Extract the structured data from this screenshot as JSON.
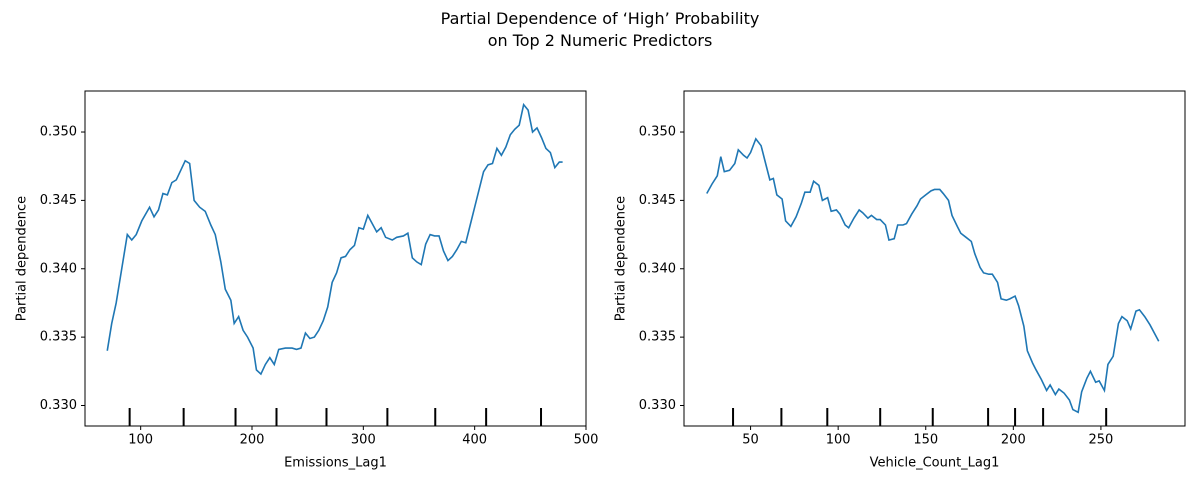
{
  "title": "Partial Dependence of ‘High’ Probability\non Top 2 Numeric Predictors",
  "chart_data": [
    {
      "type": "line",
      "xlabel": "Emissions_Lag1",
      "ylabel": "Partial dependence",
      "color": "#1f77b4",
      "xlim": [
        50,
        500
      ],
      "xticks": [
        100,
        200,
        300,
        400,
        500
      ],
      "ylim": [
        0.3285,
        0.353
      ],
      "yticks": [
        {
          "value": 0.33,
          "label": "0.330"
        },
        {
          "value": 0.335,
          "label": "0.335"
        },
        {
          "value": 0.34,
          "label": "0.340"
        },
        {
          "value": 0.345,
          "label": "0.345"
        },
        {
          "value": 0.35,
          "label": "0.350"
        }
      ],
      "deciles": [
        90.1,
        138.6,
        185.2,
        222,
        266.9,
        321.6,
        364.6,
        410.3,
        459.6
      ],
      "x": [
        70,
        74,
        78,
        83,
        88,
        92,
        96,
        101,
        108,
        112,
        116,
        120,
        124,
        128,
        132,
        136,
        140,
        144,
        148,
        153,
        158,
        163,
        167,
        172,
        176,
        181,
        184,
        188,
        192,
        196,
        201,
        204,
        208,
        212,
        216,
        220,
        224,
        230,
        236,
        240,
        244,
        248,
        252,
        256,
        260,
        264,
        268,
        272,
        276,
        280,
        284,
        288,
        292,
        296,
        300,
        304,
        308,
        312,
        316,
        320,
        326,
        330,
        336,
        340,
        344,
        348,
        352,
        356,
        360,
        364,
        368,
        372,
        376,
        380,
        384,
        388,
        392,
        396,
        400,
        404,
        408,
        412,
        416,
        420,
        424,
        428,
        432,
        436,
        440,
        444,
        448,
        452,
        456,
        460,
        464,
        468,
        472,
        476,
        479
      ],
      "values": [
        0.334,
        0.336,
        0.3375,
        0.34,
        0.3425,
        0.3421,
        0.3425,
        0.3435,
        0.3445,
        0.3438,
        0.3443,
        0.3455,
        0.3454,
        0.3463,
        0.3465,
        0.3472,
        0.3479,
        0.3477,
        0.345,
        0.3445,
        0.3442,
        0.3432,
        0.3425,
        0.3405,
        0.3385,
        0.3377,
        0.336,
        0.3365,
        0.3355,
        0.335,
        0.3342,
        0.3326,
        0.3323,
        0.333,
        0.3335,
        0.333,
        0.3341,
        0.3342,
        0.3342,
        0.3341,
        0.3342,
        0.3353,
        0.3349,
        0.335,
        0.3355,
        0.3362,
        0.3372,
        0.339,
        0.3397,
        0.3408,
        0.3409,
        0.3414,
        0.3417,
        0.343,
        0.3429,
        0.3439,
        0.3433,
        0.3427,
        0.343,
        0.3423,
        0.3421,
        0.3423,
        0.3424,
        0.3426,
        0.3408,
        0.3405,
        0.3403,
        0.3418,
        0.3425,
        0.3424,
        0.3424,
        0.3413,
        0.3406,
        0.3409,
        0.3414,
        0.342,
        0.3419,
        0.3432,
        0.3445,
        0.3458,
        0.3471,
        0.3476,
        0.3477,
        0.3488,
        0.3483,
        0.3489,
        0.3498,
        0.3502,
        0.3505,
        0.352,
        0.3516,
        0.35,
        0.3503,
        0.3496,
        0.3488,
        0.3485,
        0.3474,
        0.3478,
        0.3478
      ]
    },
    {
      "type": "line",
      "xlabel": "Vehicle_Count_Lag1",
      "ylabel": "Partial dependence",
      "color": "#1f77b4",
      "xlim": [
        12,
        298
      ],
      "xticks": [
        50,
        100,
        150,
        200,
        250
      ],
      "ylim": [
        0.3285,
        0.353
      ],
      "yticks": [
        {
          "value": 0.33,
          "label": "0.330"
        },
        {
          "value": 0.335,
          "label": "0.335"
        },
        {
          "value": 0.34,
          "label": "0.340"
        },
        {
          "value": 0.345,
          "label": "0.345"
        },
        {
          "value": 0.35,
          "label": "0.350"
        }
      ],
      "deciles": [
        40,
        67.6,
        93.8,
        124,
        154,
        185.6,
        201,
        217,
        253
      ],
      "x": [
        25,
        28,
        31,
        33,
        35,
        38,
        41,
        43,
        46,
        48,
        50,
        53,
        56,
        58,
        61,
        63,
        65,
        68,
        70,
        73,
        76,
        79,
        81,
        84,
        86,
        89,
        91,
        94,
        96,
        99,
        101,
        104,
        106,
        109,
        112,
        114,
        117,
        119,
        122,
        124,
        127,
        129,
        132,
        134,
        137,
        139,
        142,
        145,
        147,
        150,
        153,
        155,
        158,
        160,
        163,
        165,
        168,
        170,
        173,
        176,
        178,
        181,
        183,
        186,
        188,
        191,
        193,
        196,
        198,
        201,
        203,
        206,
        208,
        211,
        213,
        216,
        219,
        221,
        224,
        226,
        229,
        232,
        234,
        237,
        239,
        242,
        244,
        247,
        249,
        252,
        254,
        257,
        260,
        262,
        265,
        267,
        270,
        272,
        275,
        278,
        283
      ],
      "values": [
        0.3455,
        0.3462,
        0.3468,
        0.3482,
        0.3471,
        0.3472,
        0.3477,
        0.3487,
        0.3483,
        0.3481,
        0.3485,
        0.3495,
        0.349,
        0.348,
        0.3465,
        0.3466,
        0.3454,
        0.3451,
        0.3435,
        0.3431,
        0.3438,
        0.3448,
        0.3456,
        0.3456,
        0.3464,
        0.3461,
        0.345,
        0.3452,
        0.3442,
        0.3443,
        0.344,
        0.3432,
        0.343,
        0.3437,
        0.3443,
        0.3441,
        0.3437,
        0.3439,
        0.3436,
        0.3436,
        0.3432,
        0.3421,
        0.3422,
        0.3432,
        0.3432,
        0.3433,
        0.344,
        0.3446,
        0.3451,
        0.3454,
        0.3457,
        0.3458,
        0.3458,
        0.3455,
        0.345,
        0.3439,
        0.3431,
        0.3426,
        0.3423,
        0.342,
        0.3411,
        0.3401,
        0.3397,
        0.3396,
        0.3396,
        0.339,
        0.3378,
        0.3377,
        0.3378,
        0.338,
        0.3373,
        0.3358,
        0.334,
        0.3331,
        0.3326,
        0.3319,
        0.3311,
        0.3315,
        0.3308,
        0.3312,
        0.3309,
        0.3304,
        0.3297,
        0.3295,
        0.331,
        0.332,
        0.3325,
        0.3317,
        0.3318,
        0.3311,
        0.333,
        0.3336,
        0.336,
        0.3365,
        0.3362,
        0.3356,
        0.3369,
        0.337,
        0.3365,
        0.3359,
        0.3347
      ]
    }
  ]
}
